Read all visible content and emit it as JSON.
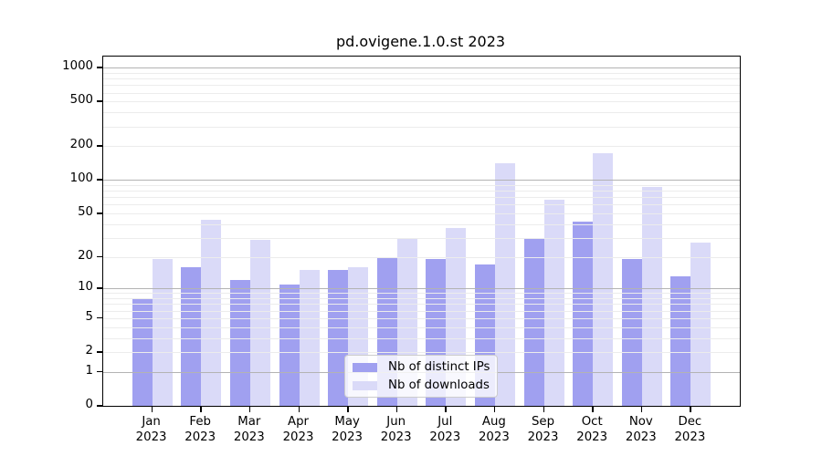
{
  "chart_data": {
    "type": "bar",
    "title": "pd.ovigene.1.0.st 2023",
    "year": "2023",
    "categories": [
      "Jan",
      "Feb",
      "Mar",
      "Apr",
      "May",
      "Jun",
      "Jul",
      "Aug",
      "Sep",
      "Oct",
      "Nov",
      "Dec"
    ],
    "series": [
      {
        "name": "Nb of distinct IPs",
        "color": "#a0a0f0",
        "values": [
          8,
          16,
          12,
          11,
          15,
          20,
          19,
          17,
          30,
          42,
          19,
          13
        ]
      },
      {
        "name": "Nb of downloads",
        "color": "#dadaf8",
        "values": [
          19,
          44,
          29,
          15,
          16,
          30,
          37,
          140,
          66,
          175,
          86,
          27
        ]
      }
    ],
    "xlabel": "",
    "ylabel": "",
    "y_axis": {
      "scale": "log1p",
      "ticks": [
        0,
        1,
        2,
        5,
        10,
        20,
        50,
        100,
        200,
        500,
        1000
      ],
      "major_gridlines": [
        1,
        10,
        100,
        1000
      ],
      "plot_max": 1256,
      "major_grid_color": "#b3b3b3",
      "minor_grid_color": "#ececec"
    },
    "legend": {
      "position": "lower center inside",
      "entries": [
        "Nb of distinct IPs",
        "Nb of downloads"
      ]
    },
    "grid": true
  }
}
